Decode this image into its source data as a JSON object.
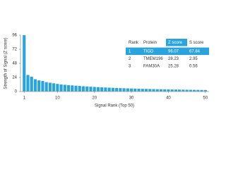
{
  "chart_data": {
    "type": "bar",
    "color": "#2aa4de",
    "y_label": "Strength of Signal (Z score)",
    "x_label": "Signal Rank (Top 50)",
    "x": [
      1,
      2,
      3,
      4,
      5,
      6,
      7,
      8,
      9,
      10,
      11,
      12,
      13,
      14,
      15,
      16,
      17,
      18,
      19,
      20,
      21,
      22,
      23,
      24,
      25,
      26,
      27,
      28,
      29,
      30,
      31,
      32,
      33,
      34,
      35,
      36,
      37,
      38,
      39,
      40,
      41,
      42,
      43,
      44,
      45,
      46,
      47,
      48,
      49,
      50
    ],
    "values": [
      96.07,
      28.23,
      25.28,
      21,
      19,
      18,
      16,
      15,
      14,
      13,
      12,
      11.5,
      11,
      10.5,
      10,
      9.5,
      9,
      8.6,
      8.2,
      7.8,
      7.5,
      7.2,
      6.9,
      6.6,
      6.3,
      6,
      5.8,
      5.6,
      5.4,
      5.2,
      5,
      4.8,
      4.6,
      4.5,
      4.3,
      4.2,
      4,
      3.9,
      3.8,
      3.6,
      3.5,
      3.4,
      3.3,
      3.2,
      3.1,
      3,
      2.9,
      2.8,
      2.7,
      2.6
    ],
    "xlim": [
      0,
      51
    ],
    "xticks": [
      1,
      10,
      20,
      30,
      40,
      50
    ],
    "ylim": [
      0,
      96
    ],
    "yticks": [
      0,
      24,
      48,
      72,
      96
    ],
    "table": {
      "columns": [
        "Rank",
        "Protein",
        "Z score",
        "S score"
      ],
      "rows": [
        [
          "1",
          "TIGD",
          "96.07",
          "67.84"
        ],
        [
          "2",
          "TMEM196",
          "28.23",
          "2.95"
        ],
        [
          "3",
          "FAM30A",
          "25.28",
          "0.56"
        ]
      ],
      "highlight_color": "#2aa4de"
    }
  }
}
